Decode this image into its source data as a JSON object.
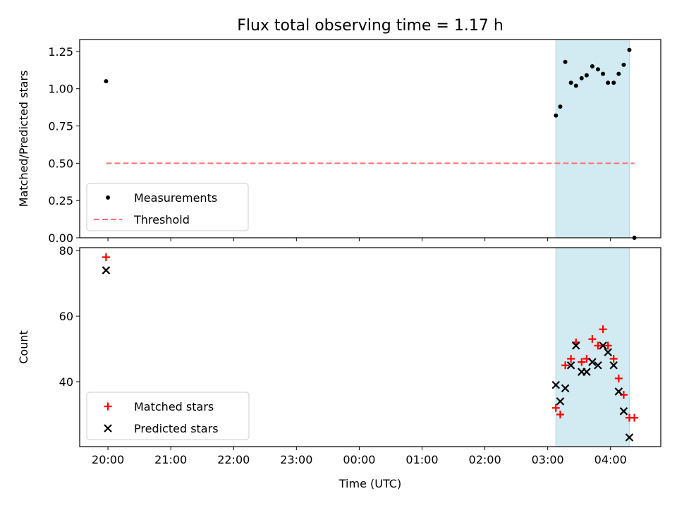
{
  "chart_data": [
    {
      "type": "scatter",
      "title": "Flux total observing time = 1.17 h",
      "xlabel": "",
      "ylabel": "Matched/Predicted stars",
      "ylim": [
        0,
        1.33
      ],
      "yticks": [
        0.0,
        0.25,
        0.5,
        0.75,
        1.0,
        1.25
      ],
      "ytick_labels": [
        "0.00",
        "0.25",
        "0.50",
        "0.75",
        "1.00",
        "1.25"
      ],
      "xlim_hours": [
        19.55,
        28.8
      ],
      "xticks_hours": [
        20,
        21,
        22,
        23,
        24,
        25,
        26,
        27,
        28
      ],
      "shaded_span_hours": [
        27.13,
        28.3
      ],
      "shaded_color": "#add8e6",
      "series": [
        {
          "name": "Measurements",
          "color": "#000000",
          "points": [
            [
              19.97,
              1.05
            ],
            [
              27.13,
              0.82
            ],
            [
              27.2,
              0.88
            ],
            [
              27.28,
              1.18
            ],
            [
              27.37,
              1.04
            ],
            [
              27.45,
              1.02
            ],
            [
              27.54,
              1.07
            ],
            [
              27.62,
              1.09
            ],
            [
              27.71,
              1.15
            ],
            [
              27.8,
              1.13
            ],
            [
              27.88,
              1.1
            ],
            [
              27.96,
              1.04
            ],
            [
              28.05,
              1.04
            ],
            [
              28.13,
              1.1
            ],
            [
              28.21,
              1.16
            ],
            [
              28.3,
              1.26
            ],
            [
              28.38,
              0.0
            ]
          ]
        },
        {
          "name": "Threshold",
          "color": "#ff7070",
          "style": "dashed",
          "points": [
            [
              19.97,
              0.5
            ],
            [
              28.38,
              0.5
            ]
          ]
        }
      ],
      "legend": [
        "Measurements",
        "Threshold"
      ],
      "legend_position": "lower-left"
    },
    {
      "type": "scatter",
      "title": "",
      "xlabel": "Time (UTC)",
      "ylabel": "Count",
      "ylim": [
        20.2,
        80.9
      ],
      "yticks": [
        40,
        60,
        80
      ],
      "ytick_labels": [
        "40",
        "60",
        "80"
      ],
      "xlim_hours": [
        19.55,
        28.8
      ],
      "xticks_hours": [
        20,
        21,
        22,
        23,
        24,
        25,
        26,
        27,
        28
      ],
      "xtick_labels": [
        "20:00",
        "21:00",
        "22:00",
        "23:00",
        "00:00",
        "01:00",
        "02:00",
        "03:00",
        "04:00"
      ],
      "shaded_span_hours": [
        27.13,
        28.3
      ],
      "shaded_color": "#add8e6",
      "series": [
        {
          "name": "Matched stars",
          "marker": "+",
          "color": "#ff0000",
          "points": [
            [
              19.97,
              78
            ],
            [
              27.13,
              32
            ],
            [
              27.2,
              30
            ],
            [
              27.28,
              45
            ],
            [
              27.37,
              47
            ],
            [
              27.45,
              52
            ],
            [
              27.54,
              46
            ],
            [
              27.62,
              47
            ],
            [
              27.71,
              53
            ],
            [
              27.8,
              51
            ],
            [
              27.88,
              56
            ],
            [
              27.96,
              51
            ],
            [
              28.05,
              47
            ],
            [
              28.13,
              41
            ],
            [
              28.21,
              36
            ],
            [
              28.3,
              29
            ],
            [
              28.38,
              29
            ]
          ]
        },
        {
          "name": "Predicted stars",
          "marker": "x",
          "color": "#000000",
          "points": [
            [
              19.97,
              74
            ],
            [
              27.13,
              39
            ],
            [
              27.2,
              34
            ],
            [
              27.28,
              38
            ],
            [
              27.37,
              45
            ],
            [
              27.45,
              51
            ],
            [
              27.54,
              43
            ],
            [
              27.62,
              43
            ],
            [
              27.71,
              46
            ],
            [
              27.8,
              45
            ],
            [
              27.88,
              51
            ],
            [
              27.96,
              49
            ],
            [
              28.05,
              45
            ],
            [
              28.13,
              37
            ],
            [
              28.21,
              31
            ],
            [
              28.3,
              23
            ]
          ]
        }
      ],
      "legend": [
        "Matched stars",
        "Predicted stars"
      ],
      "legend_position": "lower-left"
    }
  ]
}
